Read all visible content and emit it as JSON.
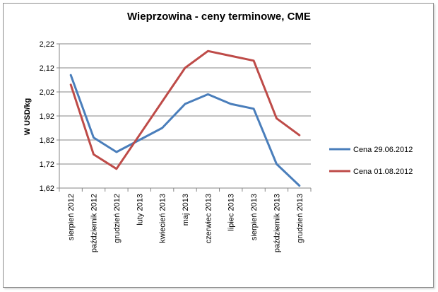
{
  "chart_data": {
    "type": "line",
    "title": "Wieprzowina - ceny terminowe, CME",
    "xlabel": "",
    "ylabel": "W USD/kg",
    "categories": [
      "sierpień 2012",
      "październik 2012",
      "grudzień 2012",
      "luty 2013",
      "kwiecień 2013",
      "maj 2013",
      "czerwiec 2013",
      "lipiec 2013",
      "sierpień 2013",
      "październik 2013",
      "grudzień 2013"
    ],
    "yticks": [
      "1,62",
      "1,72",
      "1,82",
      "1,92",
      "2,02",
      "2,12",
      "2,22"
    ],
    "ylim": [
      1.62,
      2.22
    ],
    "grid": true,
    "legend_position": "right",
    "series": [
      {
        "name": "Cena 29.06.2012",
        "color": "#4a7ebb",
        "values": [
          2.09,
          1.83,
          1.77,
          1.82,
          1.87,
          1.97,
          2.01,
          1.97,
          1.95,
          1.72,
          1.63
        ]
      },
      {
        "name": "Cena 01.08.2012",
        "color": "#be4b48",
        "values": [
          2.05,
          1.76,
          1.7,
          1.84,
          1.98,
          2.12,
          2.19,
          2.17,
          2.15,
          1.91,
          1.84
        ]
      }
    ]
  }
}
